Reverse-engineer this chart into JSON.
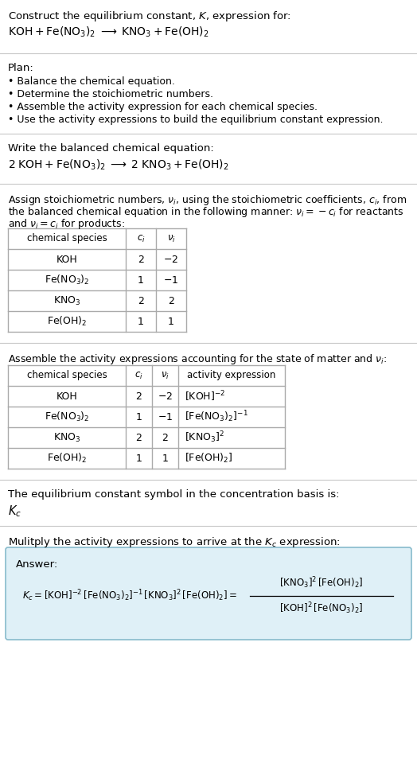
{
  "bg_color": "#ffffff",
  "text_color": "#000000",
  "title_line1": "Construct the equilibrium constant, $K$, expression for:",
  "title_line2": "$\\mathrm{KOH + Fe(NO_3)_2 \\;\\longrightarrow\\; KNO_3 + Fe(OH)_2}$",
  "plan_header": "Plan:",
  "plan_items": [
    "• Balance the chemical equation.",
    "• Determine the stoichiometric numbers.",
    "• Assemble the activity expression for each chemical species.",
    "• Use the activity expressions to build the equilibrium constant expression."
  ],
  "balanced_header": "Write the balanced chemical equation:",
  "balanced_eq": "$\\mathrm{2\\;KOH + Fe(NO_3)_2 \\;\\longrightarrow\\; 2\\;KNO_3 + Fe(OH)_2}$",
  "stoich_text1": "Assign stoichiometric numbers, $\\nu_i$, using the stoichiometric coefficients, $c_i$, from",
  "stoich_text2": "the balanced chemical equation in the following manner: $\\nu_i = -c_i$ for reactants",
  "stoich_text3": "and $\\nu_i = c_i$ for products:",
  "table1_headers": [
    "chemical species",
    "$c_i$",
    "$\\nu_i$"
  ],
  "table1_rows": [
    [
      "KOH",
      "2",
      "$-2$"
    ],
    [
      "$\\mathrm{Fe(NO_3)_2}$",
      "1",
      "$-1$"
    ],
    [
      "$\\mathrm{KNO_3}$",
      "2",
      "2"
    ],
    [
      "$\\mathrm{Fe(OH)_2}$",
      "1",
      "1"
    ]
  ],
  "assemble_header": "Assemble the activity expressions accounting for the state of matter and $\\nu_i$:",
  "table2_headers": [
    "chemical species",
    "$c_i$",
    "$\\nu_i$",
    "activity expression"
  ],
  "table2_rows": [
    [
      "KOH",
      "2",
      "$-2$",
      "$[\\mathrm{KOH}]^{-2}$"
    ],
    [
      "$\\mathrm{Fe(NO_3)_2}$",
      "1",
      "$-1$",
      "$[\\mathrm{Fe(NO_3)_2}]^{-1}$"
    ],
    [
      "$\\mathrm{KNO_3}$",
      "2",
      "2",
      "$[\\mathrm{KNO_3}]^{2}$"
    ],
    [
      "$\\mathrm{Fe(OH)_2}$",
      "1",
      "1",
      "$[\\mathrm{Fe(OH)_2}]$"
    ]
  ],
  "kc_text": "The equilibrium constant symbol in the concentration basis is:",
  "kc_symbol": "$K_c$",
  "multiply_text": "Mulitply the activity expressions to arrive at the $K_c$ expression:",
  "answer_box_color": "#dff0f7",
  "answer_box_border": "#88bbcc",
  "answer_label": "Answer:",
  "answer_eq_left": "$K_c = [\\mathrm{KOH}]^{-2}\\,[\\mathrm{Fe(NO_3)_2}]^{-1}\\,[\\mathrm{KNO_3}]^{2}\\,[\\mathrm{Fe(OH)_2}] = $",
  "answer_frac_num": "$[\\mathrm{KNO_3}]^2\\,[\\mathrm{Fe(OH)_2}]$",
  "answer_frac_den": "$[\\mathrm{KOH}]^2\\,[\\mathrm{Fe(NO_3)_2}]$"
}
